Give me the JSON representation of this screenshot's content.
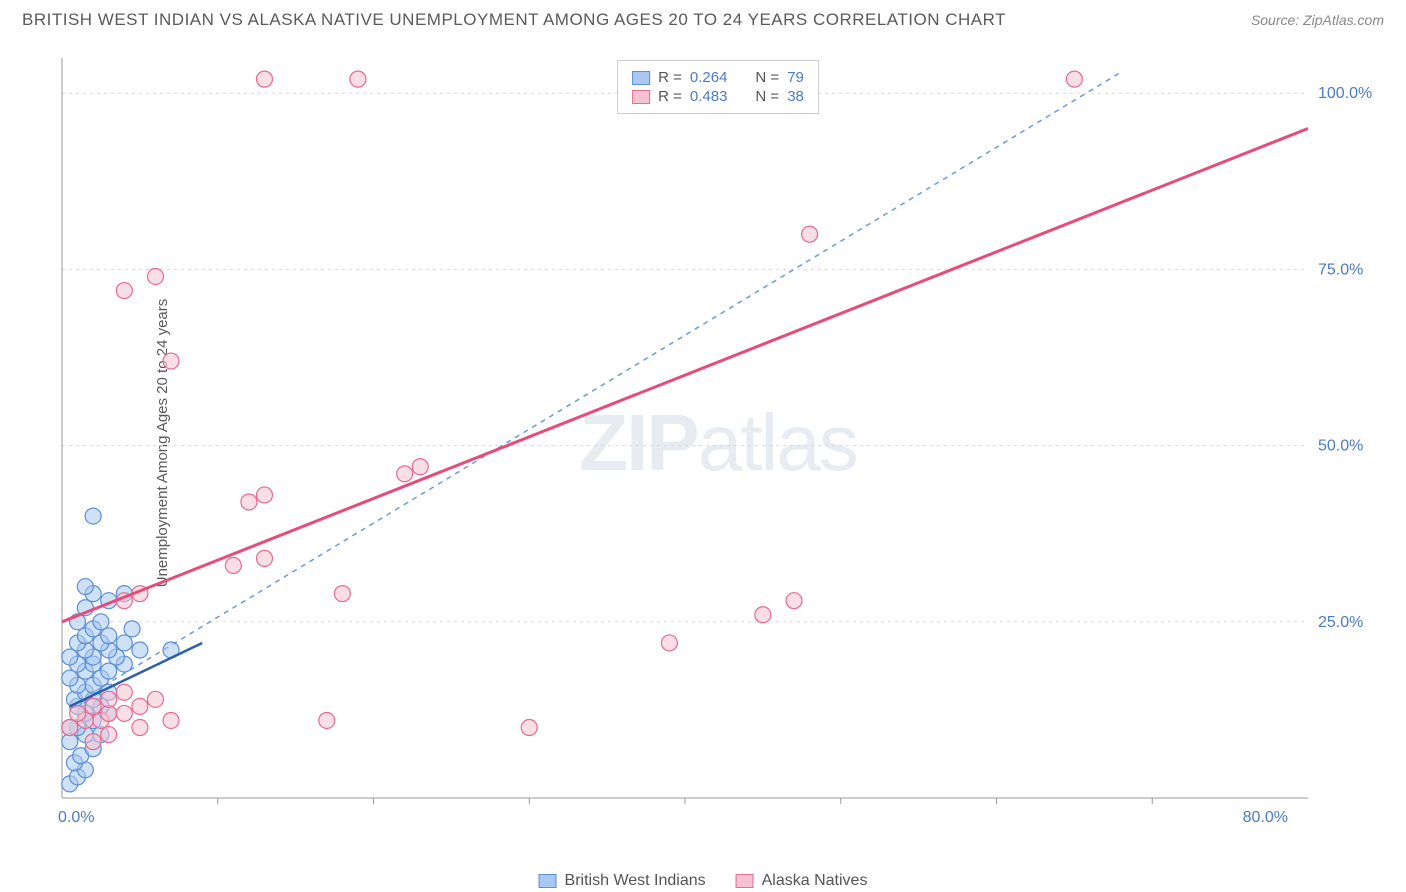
{
  "header": {
    "title": "BRITISH WEST INDIAN VS ALASKA NATIVE UNEMPLOYMENT AMONG AGES 20 TO 24 YEARS CORRELATION CHART",
    "source": "Source: ZipAtlas.com"
  },
  "chart": {
    "type": "scatter",
    "ylabel": "Unemployment Among Ages 20 to 24 years",
    "xlim": [
      0,
      80
    ],
    "ylim": [
      0,
      105
    ],
    "xtick_values": [
      0,
      80
    ],
    "xtick_labels": [
      "0.0%",
      "80.0%"
    ],
    "ytick_values": [
      25,
      50,
      75,
      100
    ],
    "ytick_labels": [
      "25.0%",
      "50.0%",
      "75.0%",
      "100.0%"
    ],
    "grid_color": "#d8d8d8",
    "grid_dash": "3,4",
    "axis_color": "#999999",
    "background_color": "#ffffff",
    "tick_label_color": "#4a7bc8",
    "tick_label_fontsize": 16,
    "axis_title_fontsize": 15,
    "axis_title_color": "#5a5a5a",
    "marker_radius": 8,
    "marker_opacity": 0.55,
    "marker_stroke_width": 1.2,
    "watermark": "ZIPatlas",
    "series": [
      {
        "name": "British West Indians",
        "fill": "#a8c8f0",
        "stroke": "#5b8fd6",
        "trend_color": "#2b5fa8",
        "trend_dash": "none",
        "trend_width": 2.5,
        "trend_points": [
          [
            0.5,
            13
          ],
          [
            9,
            22
          ]
        ],
        "guide_dash": "5,5",
        "guide_color": "#6b9bd8",
        "guide_width": 1.5,
        "guide_points": [
          [
            0.5,
            13
          ],
          [
            68,
            103
          ]
        ],
        "R": "0.264",
        "N": "79",
        "points": [
          [
            0.5,
            2
          ],
          [
            1,
            3
          ],
          [
            1.5,
            4
          ],
          [
            0.8,
            5
          ],
          [
            1.2,
            6
          ],
          [
            2,
            7
          ],
          [
            0.5,
            8
          ],
          [
            1.5,
            9
          ],
          [
            2.5,
            9
          ],
          [
            1,
            10
          ],
          [
            0.5,
            10
          ],
          [
            2,
            11
          ],
          [
            1.5,
            12
          ],
          [
            3,
            12
          ],
          [
            1,
            13
          ],
          [
            2.5,
            13
          ],
          [
            0.8,
            14
          ],
          [
            2,
            14
          ],
          [
            1.5,
            15
          ],
          [
            3,
            15
          ],
          [
            1,
            16
          ],
          [
            2,
            16
          ],
          [
            0.5,
            17
          ],
          [
            2.5,
            17
          ],
          [
            1.5,
            18
          ],
          [
            3,
            18
          ],
          [
            1,
            19
          ],
          [
            2,
            19
          ],
          [
            4,
            19
          ],
          [
            0.5,
            20
          ],
          [
            2,
            20
          ],
          [
            3.5,
            20
          ],
          [
            1.5,
            21
          ],
          [
            3,
            21
          ],
          [
            5,
            21
          ],
          [
            1,
            22
          ],
          [
            2.5,
            22
          ],
          [
            4,
            22
          ],
          [
            1.5,
            23
          ],
          [
            3,
            23
          ],
          [
            7,
            21
          ],
          [
            2,
            24
          ],
          [
            4.5,
            24
          ],
          [
            1,
            25
          ],
          [
            2.5,
            25
          ],
          [
            1.5,
            27
          ],
          [
            3,
            28
          ],
          [
            2,
            29
          ],
          [
            4,
            29
          ],
          [
            1.5,
            30
          ],
          [
            2,
            40
          ]
        ]
      },
      {
        "name": "Alaska Natives",
        "fill": "#f5c2d0",
        "stroke": "#e86a8f",
        "trend_color": "#e64c7a",
        "trend_dash": "none",
        "trend_width": 3,
        "trend_points": [
          [
            0,
            25
          ],
          [
            80,
            95
          ]
        ],
        "R": "0.483",
        "N": "38",
        "points": [
          [
            0.5,
            10
          ],
          [
            1.5,
            11
          ],
          [
            2.5,
            11
          ],
          [
            1,
            12
          ],
          [
            3,
            12
          ],
          [
            4,
            12
          ],
          [
            2,
            13
          ],
          [
            5,
            13
          ],
          [
            3,
            14
          ],
          [
            6,
            14
          ],
          [
            4,
            15
          ],
          [
            2,
            8
          ],
          [
            3,
            9
          ],
          [
            5,
            10
          ],
          [
            7,
            11
          ],
          [
            4,
            28
          ],
          [
            5,
            29
          ],
          [
            11,
            33
          ],
          [
            13,
            34
          ],
          [
            18,
            29
          ],
          [
            12,
            42
          ],
          [
            13,
            43
          ],
          [
            22,
            46
          ],
          [
            23,
            47
          ],
          [
            30,
            10
          ],
          [
            17,
            11
          ],
          [
            4,
            72
          ],
          [
            6,
            74
          ],
          [
            7,
            62
          ],
          [
            13,
            102
          ],
          [
            19,
            102
          ],
          [
            39,
            22
          ],
          [
            45,
            26
          ],
          [
            48,
            80
          ],
          [
            47,
            28
          ],
          [
            65,
            102
          ]
        ]
      }
    ],
    "stats_box": {
      "rows": [
        {
          "swatch_fill": "#a8c8f0",
          "swatch_stroke": "#5b8fd6",
          "r_label": "R =",
          "r_val": "0.264",
          "n_label": "N =",
          "n_val": "79"
        },
        {
          "swatch_fill": "#f5c2d0",
          "swatch_stroke": "#e86a8f",
          "r_label": "R =",
          "r_val": "0.483",
          "n_label": "N =",
          "n_val": "38"
        }
      ]
    },
    "legend": [
      {
        "swatch_fill": "#a8c8f0",
        "swatch_stroke": "#5b8fd6",
        "label": "British West Indians"
      },
      {
        "swatch_fill": "#f5c2d0",
        "swatch_stroke": "#e86a8f",
        "label": "Alaska Natives"
      }
    ]
  }
}
